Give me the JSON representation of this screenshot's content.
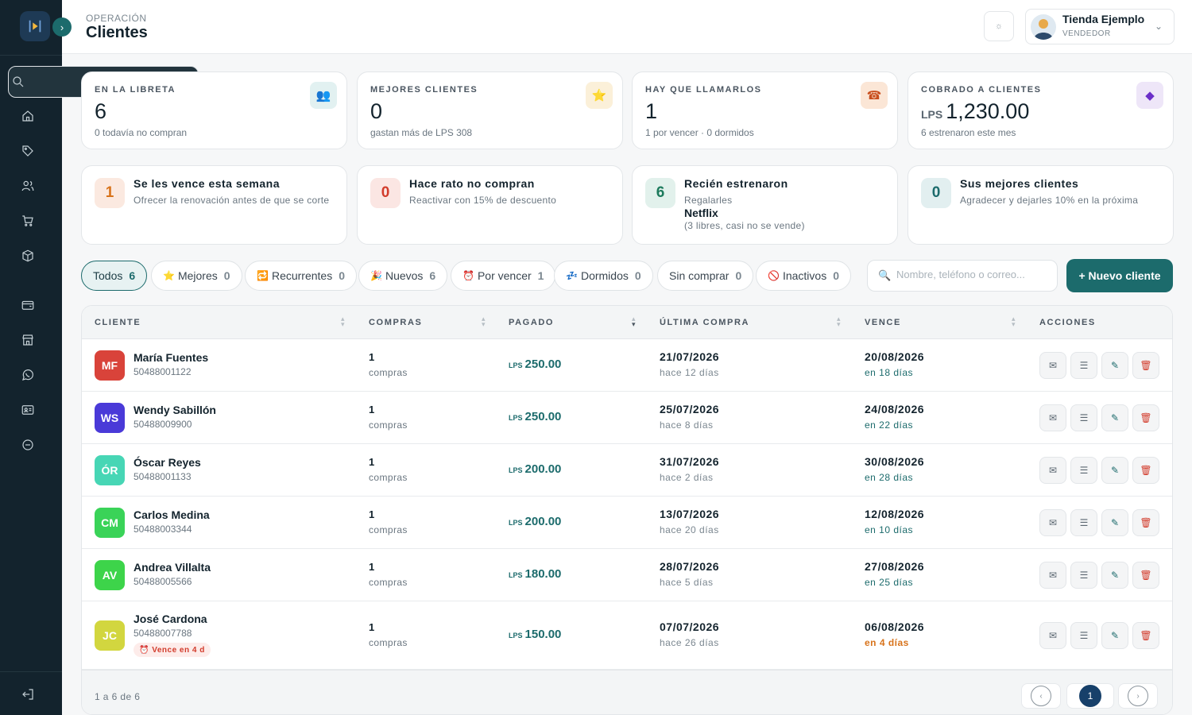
{
  "header": {
    "breadcrumb": "OPERACIÓN",
    "title": "Clientes",
    "user": {
      "name": "Tienda Ejemplo",
      "role": "VENDEDOR"
    }
  },
  "sidebar": {
    "items": [
      {
        "icon": "search-icon"
      },
      {
        "icon": "home-icon"
      },
      {
        "icon": "tag-icon"
      },
      {
        "icon": "users-icon"
      },
      {
        "icon": "cart-icon"
      },
      {
        "icon": "box-icon"
      },
      {
        "icon": "wallet-icon"
      },
      {
        "icon": "store-icon"
      },
      {
        "icon": "whatsapp-icon"
      },
      {
        "icon": "id-card-icon"
      },
      {
        "icon": "minus-circle-icon"
      },
      {
        "icon": "logout-icon"
      }
    ]
  },
  "stats": [
    {
      "label": "EN LA LIBRETA",
      "value": "6",
      "sub": "0 todavía no compran",
      "icon": "👥",
      "color": "#e2f1f1"
    },
    {
      "label": "MEJORES CLIENTES",
      "value": "0",
      "sub": "gastan más de LPS 308",
      "icon": "⭐",
      "color": "#fbf0d9"
    },
    {
      "label": "HAY QUE LLAMARLOS",
      "value": "1",
      "sub": "1 por vencer · 0 dormidos",
      "icon": "☎",
      "color": "#fbe6d6"
    },
    {
      "label": "COBRADO A CLIENTES",
      "prefix": "LPS",
      "value": "1,230.00",
      "sub": "6 estrenaron este mes",
      "icon": "◆",
      "color": "#eee6f8"
    }
  ],
  "actions": [
    {
      "num": "1",
      "title": "Se les vence esta semana",
      "desc": "Ofrecer la renovación antes de que se corte"
    },
    {
      "num": "0",
      "title": "Hace rato no compran",
      "desc": "Reactivar con 15% de descuento"
    },
    {
      "num": "6",
      "title": "Recién estrenaron",
      "desc": "Regalarles",
      "strong": "Netflix",
      "note": "(3 libres, casi no se vende)"
    },
    {
      "num": "0",
      "title": "Sus mejores clientes",
      "desc": "Agradecer y dejarles 10% en la próxima"
    }
  ],
  "filters": [
    {
      "label": "Todos",
      "count": "6",
      "icon": ""
    },
    {
      "label": "Mejores",
      "count": "0",
      "icon": "⭐"
    },
    {
      "label": "Recurrentes",
      "count": "0",
      "icon": "🔁"
    },
    {
      "label": "Nuevos",
      "count": "6",
      "icon": "🎉"
    },
    {
      "label": "Por vencer",
      "count": "1",
      "icon": "⏰"
    },
    {
      "label": "Dormidos",
      "count": "0",
      "icon": "💤"
    },
    {
      "label": "Sin comprar",
      "count": "0",
      "icon": ""
    },
    {
      "label": "Inactivos",
      "count": "0",
      "icon": "🚫"
    }
  ],
  "search": {
    "placeholder": "Nombre, teléfono o correo..."
  },
  "new_client_label": "+ Nuevo cliente",
  "table": {
    "columns": [
      "CLIENTE",
      "COMPRAS",
      "PAGADO",
      "ÚLTIMA COMPRA",
      "VENCE",
      "ACCIONES"
    ],
    "currency": "LPS",
    "rows": [
      {
        "initials": "MF",
        "color": "#d9433a",
        "name": "María Fuentes",
        "phone": "50488001122",
        "purchases": "1",
        "purchases_label": "compras",
        "paid": "250.00",
        "last": "21/07/2026",
        "last_sub": "hace 12 días",
        "due": "20/08/2026",
        "due_sub": "en 18 días",
        "due_status": "green"
      },
      {
        "initials": "WS",
        "color": "#4a3ad8",
        "name": "Wendy Sabillón",
        "phone": "50488009900",
        "purchases": "1",
        "purchases_label": "compras",
        "paid": "250.00",
        "last": "25/07/2026",
        "last_sub": "hace 8 días",
        "due": "24/08/2026",
        "due_sub": "en 22 días",
        "due_status": "green"
      },
      {
        "initials": "ÓR",
        "color": "#47d6b5",
        "name": "Óscar Reyes",
        "phone": "50488001133",
        "purchases": "1",
        "purchases_label": "compras",
        "paid": "200.00",
        "last": "31/07/2026",
        "last_sub": "hace 2 días",
        "due": "30/08/2026",
        "due_sub": "en 28 días",
        "due_status": "green"
      },
      {
        "initials": "CM",
        "color": "#3ad358",
        "name": "Carlos Medina",
        "phone": "50488003344",
        "purchases": "1",
        "purchases_label": "compras",
        "paid": "200.00",
        "last": "13/07/2026",
        "last_sub": "hace 20 días",
        "due": "12/08/2026",
        "due_sub": "en 10 días",
        "due_status": "green"
      },
      {
        "initials": "AV",
        "color": "#3dd44a",
        "name": "Andrea Villalta",
        "phone": "50488005566",
        "purchases": "1",
        "purchases_label": "compras",
        "paid": "180.00",
        "last": "28/07/2026",
        "last_sub": "hace 5 días",
        "due": "27/08/2026",
        "due_sub": "en 25 días",
        "due_status": "green"
      },
      {
        "initials": "JC",
        "color": "#d2d63f",
        "name": "José Cardona",
        "phone": "50488007788",
        "badge": "⏰ Vence en 4 d",
        "purchases": "1",
        "purchases_label": "compras",
        "paid": "150.00",
        "last": "07/07/2026",
        "last_sub": "hace 26 días",
        "due": "06/08/2026",
        "due_sub": "en 4 días",
        "due_status": "orange"
      }
    ]
  },
  "pagination": {
    "info": "1 a 6 de 6",
    "current": "1",
    "prev": "‹",
    "next": "›"
  }
}
